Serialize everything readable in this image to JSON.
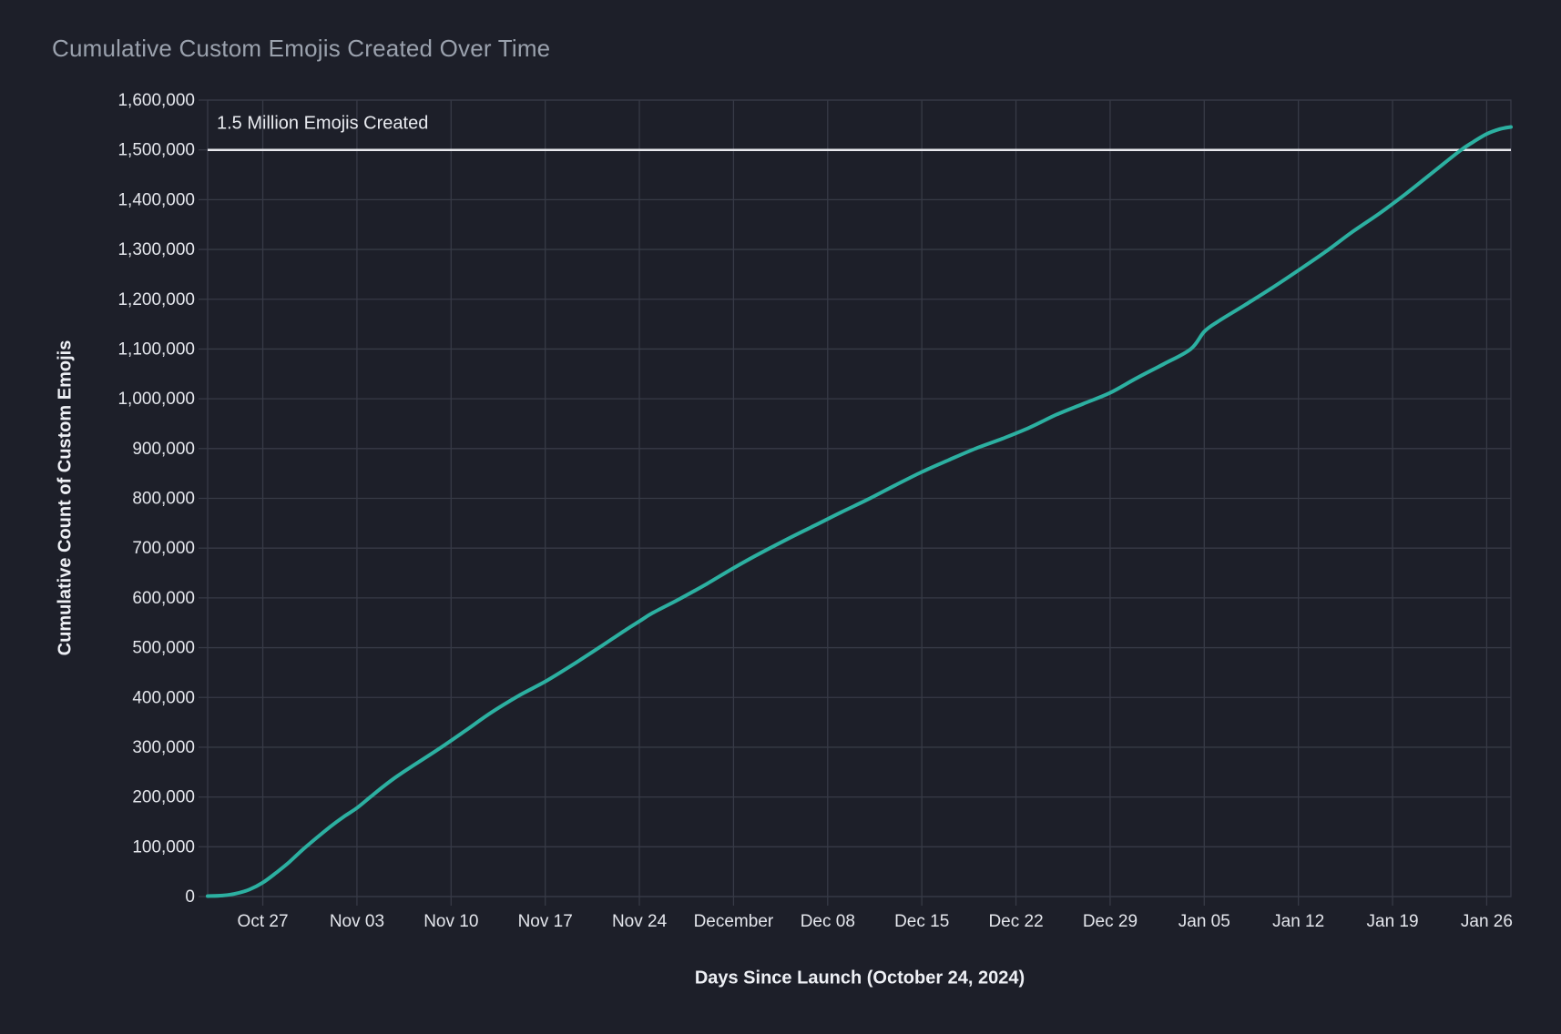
{
  "page": {
    "background_color": "#1d1f29"
  },
  "chart": {
    "title": "Cumulative Custom Emojis Created Over Time",
    "title_color": "#9aa1ad",
    "x_axis_title": "Days Since Launch (October 24, 2024)",
    "y_axis_title": "Cumulative Count of Custom Emojis",
    "axis_title_color": "#eef0f5",
    "tick_label_color": "#e4e6ec"
  },
  "chart_data": {
    "type": "line",
    "title": "Cumulative Custom Emojis Created Over Time",
    "xlabel": "Days Since Launch (October 24, 2024)",
    "ylabel": "Cumulative Count of Custom Emojis",
    "x_unit": "days since 2024-10-24",
    "xlim_days": [
      -1.1,
      95.8
    ],
    "ylim": [
      0,
      1600000
    ],
    "grid": true,
    "grid_color": "#373a46",
    "line_color": "#2cb0a1",
    "line_width": 4,
    "background_color": "#1d1f29",
    "legend": "none",
    "reference_line": {
      "value": 1500000,
      "label": "1.5 Million Emojis Created",
      "color": "#e9e9ee",
      "label_color": "#e9ebf0"
    },
    "x_ticks": [
      {
        "day": 3,
        "label": "Oct 27"
      },
      {
        "day": 10,
        "label": "Nov 03"
      },
      {
        "day": 17,
        "label": "Nov 10"
      },
      {
        "day": 24,
        "label": "Nov 17"
      },
      {
        "day": 31,
        "label": "Nov 24"
      },
      {
        "day": 38,
        "label": "December"
      },
      {
        "day": 45,
        "label": "Dec 08"
      },
      {
        "day": 52,
        "label": "Dec 15"
      },
      {
        "day": 59,
        "label": "Dec 22"
      },
      {
        "day": 66,
        "label": "Dec 29"
      },
      {
        "day": 73,
        "label": "Jan 05"
      },
      {
        "day": 80,
        "label": "Jan 12"
      },
      {
        "day": 87,
        "label": "Jan 19"
      },
      {
        "day": 94,
        "label": "Jan 26"
      }
    ],
    "y_ticks": [
      0,
      100000,
      200000,
      300000,
      400000,
      500000,
      600000,
      700000,
      800000,
      900000,
      1000000,
      1100000,
      1200000,
      1300000,
      1400000,
      1500000,
      1600000
    ],
    "points": [
      [
        -1.1,
        1000
      ],
      [
        0,
        2000
      ],
      [
        1,
        6000
      ],
      [
        2,
        14000
      ],
      [
        3,
        28000
      ],
      [
        4,
        48000
      ],
      [
        5,
        70000
      ],
      [
        6,
        95000
      ],
      [
        7,
        118000
      ],
      [
        8,
        140000
      ],
      [
        9,
        160000
      ],
      [
        10,
        178000
      ],
      [
        11,
        200000
      ],
      [
        12,
        222000
      ],
      [
        13,
        242000
      ],
      [
        14,
        260000
      ],
      [
        16,
        295000
      ],
      [
        18,
        332000
      ],
      [
        20,
        370000
      ],
      [
        22,
        403000
      ],
      [
        24,
        432000
      ],
      [
        26,
        465000
      ],
      [
        28,
        500000
      ],
      [
        30,
        536000
      ],
      [
        31,
        553000
      ],
      [
        32,
        570000
      ],
      [
        34,
        598000
      ],
      [
        36,
        628000
      ],
      [
        38,
        660000
      ],
      [
        40,
        690000
      ],
      [
        42,
        718000
      ],
      [
        44,
        745000
      ],
      [
        46,
        772000
      ],
      [
        48,
        798000
      ],
      [
        50,
        826000
      ],
      [
        52,
        853000
      ],
      [
        54,
        877000
      ],
      [
        56,
        900000
      ],
      [
        58,
        920000
      ],
      [
        60,
        942000
      ],
      [
        62,
        968000
      ],
      [
        64,
        990000
      ],
      [
        66,
        1012000
      ],
      [
        68,
        1042000
      ],
      [
        70,
        1070000
      ],
      [
        72,
        1100000
      ],
      [
        73,
        1135000
      ],
      [
        74,
        1155000
      ],
      [
        76,
        1188000
      ],
      [
        78,
        1222000
      ],
      [
        80,
        1258000
      ],
      [
        82,
        1295000
      ],
      [
        84,
        1335000
      ],
      [
        86,
        1372000
      ],
      [
        88,
        1412000
      ],
      [
        90,
        1455000
      ],
      [
        92,
        1498000
      ],
      [
        93,
        1516000
      ],
      [
        94,
        1532000
      ],
      [
        95,
        1542000
      ],
      [
        95.8,
        1546000
      ]
    ]
  }
}
